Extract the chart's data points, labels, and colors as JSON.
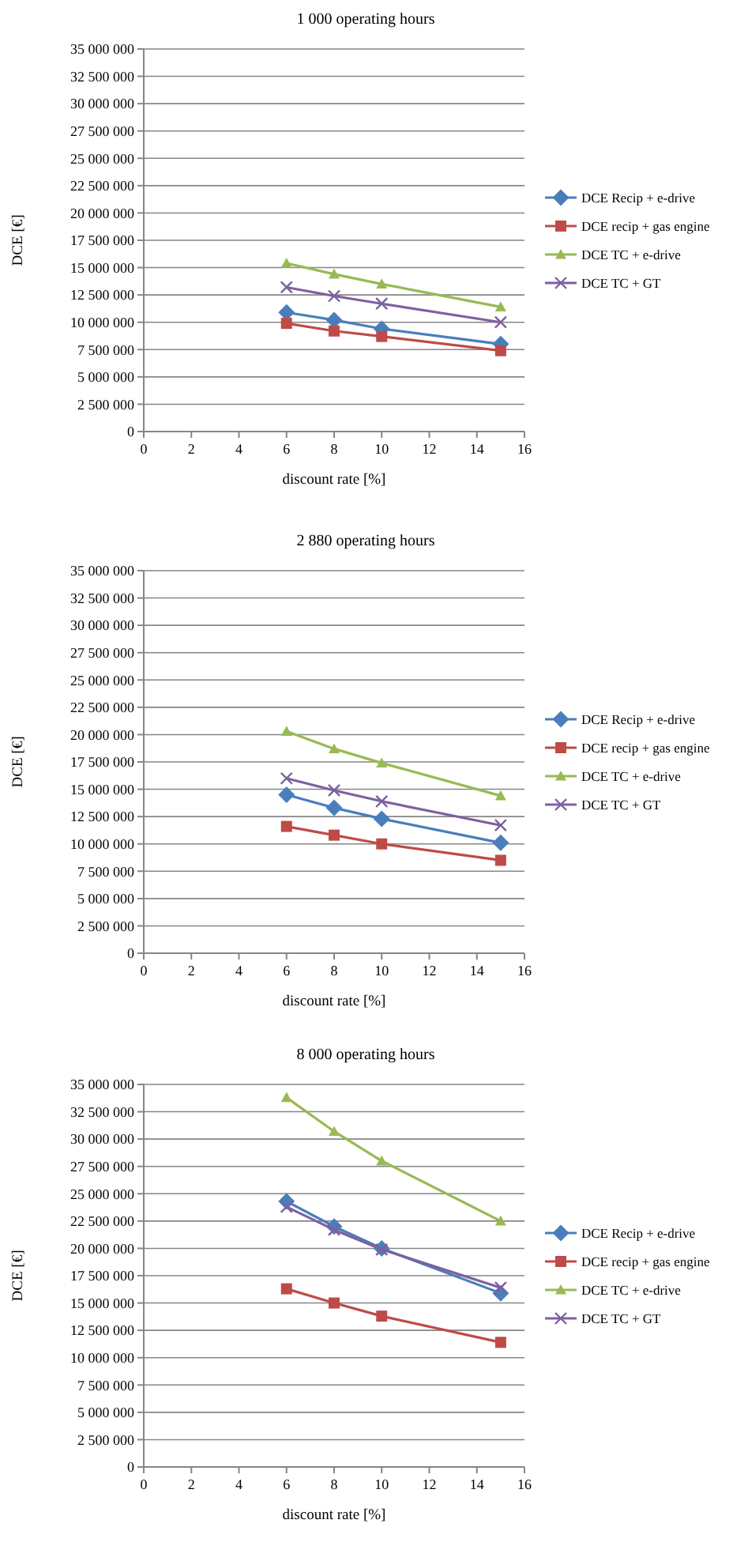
{
  "chart_data": [
    {
      "type": "line",
      "title": "1 000 operating hours",
      "xlabel": "discount rate [%]",
      "ylabel": "DCE [€]",
      "x": [
        6,
        8,
        10,
        15
      ],
      "xlim": [
        0,
        16
      ],
      "xticks": [
        0,
        2,
        4,
        6,
        8,
        10,
        12,
        14,
        16
      ],
      "ylim": [
        0,
        35000000
      ],
      "yticks": [
        {
          "value": 0,
          "label": "0"
        },
        {
          "value": 2500000,
          "label": "2 500 000"
        },
        {
          "value": 5000000,
          "label": "5 000 000"
        },
        {
          "value": 7500000,
          "label": "7 500 000"
        },
        {
          "value": 10000000,
          "label": "10 000 000"
        },
        {
          "value": 12500000,
          "label": "12 500 000"
        },
        {
          "value": 15000000,
          "label": "15 000 000"
        },
        {
          "value": 17500000,
          "label": "17 500 000"
        },
        {
          "value": 20000000,
          "label": "20 000 000"
        },
        {
          "value": 22500000,
          "label": "22 500 000"
        },
        {
          "value": 25000000,
          "label": "25 000 000"
        },
        {
          "value": 27500000,
          "label": "27 500 000"
        },
        {
          "value": 30000000,
          "label": "30 000 000"
        },
        {
          "value": 32500000,
          "label": "32 500 000"
        },
        {
          "value": 35000000,
          "label": "35 000 000"
        }
      ],
      "grid": "y",
      "legend": "right",
      "series": [
        {
          "name": "DCE Recip + e-drive",
          "color": "#4a7ebb",
          "marker": "diamond",
          "values": [
            10900000,
            10200000,
            9400000,
            8000000
          ]
        },
        {
          "name": "DCE recip + gas engine",
          "color": "#be4b48",
          "marker": "square",
          "values": [
            9900000,
            9200000,
            8700000,
            7400000
          ]
        },
        {
          "name": "DCE TC + e-drive",
          "color": "#98b954",
          "marker": "triangle",
          "values": [
            15400000,
            14400000,
            13500000,
            11400000
          ]
        },
        {
          "name": "DCE TC + GT",
          "color": "#7d60a0",
          "marker": "cross",
          "values": [
            13200000,
            12400000,
            11700000,
            10000000
          ]
        }
      ]
    },
    {
      "type": "line",
      "title": "2 880 operating hours",
      "xlabel": "discount rate [%]",
      "ylabel": "DCE [€]",
      "x": [
        6,
        8,
        10,
        15
      ],
      "xlim": [
        0,
        16
      ],
      "xticks": [
        0,
        2,
        4,
        6,
        8,
        10,
        12,
        14,
        16
      ],
      "ylim": [
        0,
        35000000
      ],
      "yticks": [
        {
          "value": 0,
          "label": "0"
        },
        {
          "value": 2500000,
          "label": "2 500 000"
        },
        {
          "value": 5000000,
          "label": "5 000 000"
        },
        {
          "value": 7500000,
          "label": "7 500 000"
        },
        {
          "value": 10000000,
          "label": "10 000 000"
        },
        {
          "value": 12500000,
          "label": "12 500 000"
        },
        {
          "value": 15000000,
          "label": "15 000 000"
        },
        {
          "value": 17500000,
          "label": "17 500 000"
        },
        {
          "value": 20000000,
          "label": "20 000 000"
        },
        {
          "value": 22500000,
          "label": "22 500 000"
        },
        {
          "value": 25000000,
          "label": "25 000 000"
        },
        {
          "value": 27500000,
          "label": "27 500 000"
        },
        {
          "value": 30000000,
          "label": "30 000 000"
        },
        {
          "value": 32500000,
          "label": "32 500 000"
        },
        {
          "value": 35000000,
          "label": "35 000 000"
        }
      ],
      "grid": "y",
      "legend": "right",
      "series": [
        {
          "name": "DCE Recip + e-drive",
          "color": "#4a7ebb",
          "marker": "diamond",
          "values": [
            14500000,
            13300000,
            12300000,
            10100000
          ]
        },
        {
          "name": "DCE recip + gas engine",
          "color": "#be4b48",
          "marker": "square",
          "values": [
            11600000,
            10800000,
            10000000,
            8500000
          ]
        },
        {
          "name": "DCE TC + e-drive",
          "color": "#98b954",
          "marker": "triangle",
          "values": [
            20300000,
            18700000,
            17400000,
            14400000
          ]
        },
        {
          "name": "DCE TC + GT",
          "color": "#7d60a0",
          "marker": "cross",
          "values": [
            16000000,
            14900000,
            13900000,
            11700000
          ]
        }
      ]
    },
    {
      "type": "line",
      "title": "8 000 operating hours",
      "xlabel": "discount rate [%]",
      "ylabel": "DCE [€]",
      "x": [
        6,
        8,
        10,
        15
      ],
      "xlim": [
        0,
        16
      ],
      "xticks": [
        0,
        2,
        4,
        6,
        8,
        10,
        12,
        14,
        16
      ],
      "ylim": [
        0,
        35000000
      ],
      "yticks": [
        {
          "value": 0,
          "label": "0"
        },
        {
          "value": 2500000,
          "label": "2 500 000"
        },
        {
          "value": 5000000,
          "label": "5 000 000"
        },
        {
          "value": 7500000,
          "label": "7 500 000"
        },
        {
          "value": 10000000,
          "label": "10 000 000"
        },
        {
          "value": 12500000,
          "label": "12 500 000"
        },
        {
          "value": 15000000,
          "label": "15 000 000"
        },
        {
          "value": 17500000,
          "label": "17 500 000"
        },
        {
          "value": 20000000,
          "label": "20 000 000"
        },
        {
          "value": 22500000,
          "label": "22 500 000"
        },
        {
          "value": 25000000,
          "label": "25 000 000"
        },
        {
          "value": 27500000,
          "label": "27 500 000"
        },
        {
          "value": 30000000,
          "label": "30 000 000"
        },
        {
          "value": 32500000,
          "label": "32 500 000"
        },
        {
          "value": 35000000,
          "label": "35 000 000"
        }
      ],
      "grid": "y",
      "legend": "right",
      "series": [
        {
          "name": "DCE Recip + e-drive",
          "color": "#4a7ebb",
          "marker": "diamond",
          "values": [
            24300000,
            22000000,
            20000000,
            15900000
          ]
        },
        {
          "name": "DCE recip + gas engine",
          "color": "#be4b48",
          "marker": "square",
          "values": [
            16300000,
            15000000,
            13800000,
            11400000
          ]
        },
        {
          "name": "DCE TC + e-drive",
          "color": "#98b954",
          "marker": "triangle",
          "values": [
            33800000,
            30700000,
            28000000,
            22500000
          ]
        },
        {
          "name": "DCE TC + GT",
          "color": "#7d60a0",
          "marker": "cross",
          "values": [
            23800000,
            21700000,
            19900000,
            16400000
          ]
        }
      ]
    }
  ]
}
